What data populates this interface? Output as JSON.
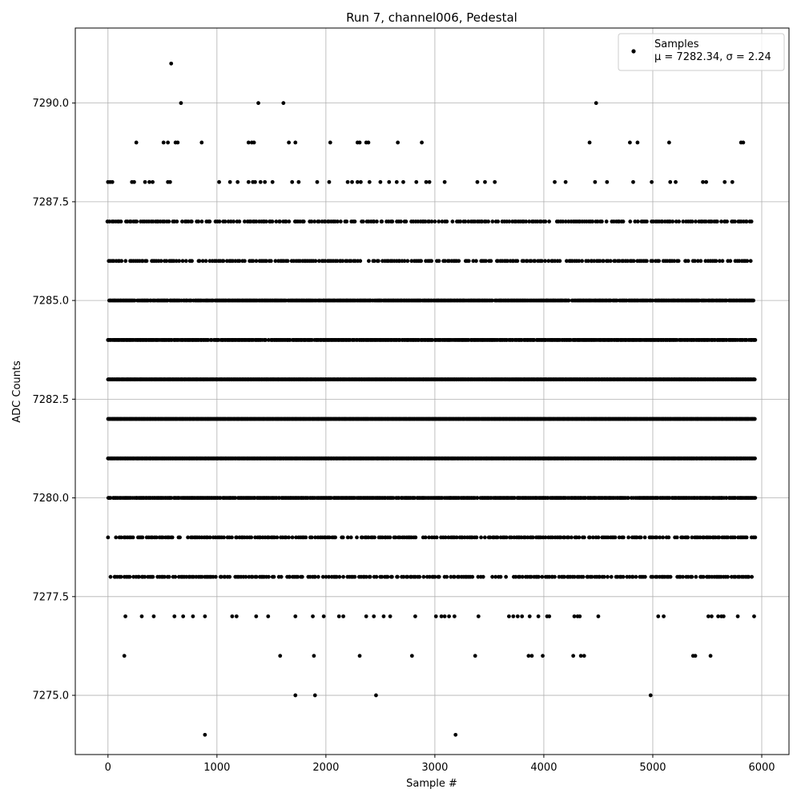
{
  "chart_data": {
    "type": "scatter",
    "title": "Run 7, channel006, Pedestal",
    "xlabel": "Sample #",
    "ylabel": "ADC Counts",
    "xlim": [
      -300,
      6250
    ],
    "ylim": [
      7273.5,
      7291.9
    ],
    "xticks": [
      0,
      1000,
      2000,
      3000,
      4000,
      5000,
      6000
    ],
    "yticks": [
      7275.0,
      7277.5,
      7280.0,
      7282.5,
      7285.0,
      7287.5,
      7290.0
    ],
    "xtick_labels": [
      "0",
      "1000",
      "2000",
      "3000",
      "4000",
      "5000",
      "6000"
    ],
    "ytick_labels": [
      "7275.0",
      "7277.5",
      "7280.0",
      "7282.5",
      "7285.0",
      "7287.5",
      "7290.0"
    ],
    "grid": true,
    "legend_position": "top-right",
    "series": [
      {
        "name": "Samples",
        "legend_stats": "μ = 7282.34, σ = 2.24",
        "color": "#000000",
        "n_points": 5940,
        "levels": [
          {
            "y": 7281,
            "x_range": [
              0,
              5940
            ],
            "density": "continuous"
          },
          {
            "y": 7282,
            "x_range": [
              0,
              5940
            ],
            "density": "continuous"
          },
          {
            "y": 7283,
            "x_range": [
              0,
              5940
            ],
            "density": "continuous"
          },
          {
            "y": 7284,
            "x_range": [
              0,
              5940
            ],
            "density": "dense"
          },
          {
            "y": 7285,
            "x_range": [
              0,
              5940
            ],
            "density": "dense"
          },
          {
            "y": 7280,
            "x_range": [
              0,
              5940
            ],
            "density": "dense"
          },
          {
            "y": 7279,
            "x_range": [
              0,
              5940
            ],
            "density": "medium"
          },
          {
            "y": 7286,
            "x_range": [
              0,
              5920
            ],
            "density": "medium"
          },
          {
            "y": 7287,
            "x_range": [
              0,
              5920
            ],
            "density": "medium"
          },
          {
            "y": 7278,
            "x_range": [
              0,
              5940
            ],
            "density": "medium"
          }
        ],
        "sparse_points": [
          {
            "x": 0,
            "y": 7288
          },
          {
            "x": 20,
            "y": 7288
          },
          {
            "x": 40,
            "y": 7288
          },
          {
            "x": 220,
            "y": 7288
          },
          {
            "x": 240,
            "y": 7288
          },
          {
            "x": 340,
            "y": 7288
          },
          {
            "x": 380,
            "y": 7288
          },
          {
            "x": 410,
            "y": 7288
          },
          {
            "x": 550,
            "y": 7288
          },
          {
            "x": 570,
            "y": 7288
          },
          {
            "x": 1020,
            "y": 7288
          },
          {
            "x": 1120,
            "y": 7288
          },
          {
            "x": 1190,
            "y": 7288
          },
          {
            "x": 1290,
            "y": 7288
          },
          {
            "x": 1330,
            "y": 7288
          },
          {
            "x": 1350,
            "y": 7288
          },
          {
            "x": 1400,
            "y": 7288
          },
          {
            "x": 1440,
            "y": 7288
          },
          {
            "x": 1510,
            "y": 7288
          },
          {
            "x": 1690,
            "y": 7288
          },
          {
            "x": 1750,
            "y": 7288
          },
          {
            "x": 1920,
            "y": 7288
          },
          {
            "x": 2030,
            "y": 7288
          },
          {
            "x": 2200,
            "y": 7288
          },
          {
            "x": 2240,
            "y": 7288
          },
          {
            "x": 2290,
            "y": 7288
          },
          {
            "x": 2320,
            "y": 7288
          },
          {
            "x": 2400,
            "y": 7288
          },
          {
            "x": 2500,
            "y": 7288
          },
          {
            "x": 2580,
            "y": 7288
          },
          {
            "x": 2650,
            "y": 7288
          },
          {
            "x": 2710,
            "y": 7288
          },
          {
            "x": 2830,
            "y": 7288
          },
          {
            "x": 2920,
            "y": 7288
          },
          {
            "x": 2950,
            "y": 7288
          },
          {
            "x": 3090,
            "y": 7288
          },
          {
            "x": 3390,
            "y": 7288
          },
          {
            "x": 3460,
            "y": 7288
          },
          {
            "x": 3550,
            "y": 7288
          },
          {
            "x": 4100,
            "y": 7288
          },
          {
            "x": 4200,
            "y": 7288
          },
          {
            "x": 4470,
            "y": 7288
          },
          {
            "x": 4580,
            "y": 7288
          },
          {
            "x": 4820,
            "y": 7288
          },
          {
            "x": 4990,
            "y": 7288
          },
          {
            "x": 5160,
            "y": 7288
          },
          {
            "x": 5210,
            "y": 7288
          },
          {
            "x": 5460,
            "y": 7288
          },
          {
            "x": 5490,
            "y": 7288
          },
          {
            "x": 5660,
            "y": 7288
          },
          {
            "x": 5730,
            "y": 7288
          },
          {
            "x": 260,
            "y": 7289
          },
          {
            "x": 510,
            "y": 7289
          },
          {
            "x": 550,
            "y": 7289
          },
          {
            "x": 620,
            "y": 7289
          },
          {
            "x": 640,
            "y": 7289
          },
          {
            "x": 860,
            "y": 7289
          },
          {
            "x": 1290,
            "y": 7289
          },
          {
            "x": 1320,
            "y": 7289
          },
          {
            "x": 1340,
            "y": 7289
          },
          {
            "x": 1660,
            "y": 7289
          },
          {
            "x": 1720,
            "y": 7289
          },
          {
            "x": 2040,
            "y": 7289
          },
          {
            "x": 2290,
            "y": 7289
          },
          {
            "x": 2310,
            "y": 7289
          },
          {
            "x": 2370,
            "y": 7289
          },
          {
            "x": 2390,
            "y": 7289
          },
          {
            "x": 2660,
            "y": 7289
          },
          {
            "x": 2880,
            "y": 7289
          },
          {
            "x": 4420,
            "y": 7289
          },
          {
            "x": 4790,
            "y": 7289
          },
          {
            "x": 4860,
            "y": 7289
          },
          {
            "x": 5150,
            "y": 7289
          },
          {
            "x": 5810,
            "y": 7289
          },
          {
            "x": 5830,
            "y": 7289
          },
          {
            "x": 670,
            "y": 7290
          },
          {
            "x": 1380,
            "y": 7290
          },
          {
            "x": 1610,
            "y": 7290
          },
          {
            "x": 4480,
            "y": 7290
          },
          {
            "x": 580,
            "y": 7291
          },
          {
            "x": 160,
            "y": 7277
          },
          {
            "x": 310,
            "y": 7277
          },
          {
            "x": 420,
            "y": 7277
          },
          {
            "x": 610,
            "y": 7277
          },
          {
            "x": 690,
            "y": 7277
          },
          {
            "x": 780,
            "y": 7277
          },
          {
            "x": 890,
            "y": 7277
          },
          {
            "x": 1140,
            "y": 7277
          },
          {
            "x": 1180,
            "y": 7277
          },
          {
            "x": 1360,
            "y": 7277
          },
          {
            "x": 1470,
            "y": 7277
          },
          {
            "x": 1720,
            "y": 7277
          },
          {
            "x": 1880,
            "y": 7277
          },
          {
            "x": 1980,
            "y": 7277
          },
          {
            "x": 2120,
            "y": 7277
          },
          {
            "x": 2160,
            "y": 7277
          },
          {
            "x": 2370,
            "y": 7277
          },
          {
            "x": 2440,
            "y": 7277
          },
          {
            "x": 2530,
            "y": 7277
          },
          {
            "x": 2590,
            "y": 7277
          },
          {
            "x": 2820,
            "y": 7277
          },
          {
            "x": 3010,
            "y": 7277
          },
          {
            "x": 3060,
            "y": 7277
          },
          {
            "x": 3090,
            "y": 7277
          },
          {
            "x": 3130,
            "y": 7277
          },
          {
            "x": 3180,
            "y": 7277
          },
          {
            "x": 3400,
            "y": 7277
          },
          {
            "x": 3680,
            "y": 7277
          },
          {
            "x": 3720,
            "y": 7277
          },
          {
            "x": 3760,
            "y": 7277
          },
          {
            "x": 3800,
            "y": 7277
          },
          {
            "x": 3870,
            "y": 7277
          },
          {
            "x": 3950,
            "y": 7277
          },
          {
            "x": 4030,
            "y": 7277
          },
          {
            "x": 4050,
            "y": 7277
          },
          {
            "x": 4280,
            "y": 7277
          },
          {
            "x": 4310,
            "y": 7277
          },
          {
            "x": 4330,
            "y": 7277
          },
          {
            "x": 4500,
            "y": 7277
          },
          {
            "x": 5050,
            "y": 7277
          },
          {
            "x": 5100,
            "y": 7277
          },
          {
            "x": 5510,
            "y": 7277
          },
          {
            "x": 5540,
            "y": 7277
          },
          {
            "x": 5600,
            "y": 7277
          },
          {
            "x": 5630,
            "y": 7277
          },
          {
            "x": 5650,
            "y": 7277
          },
          {
            "x": 5780,
            "y": 7277
          },
          {
            "x": 5930,
            "y": 7277
          },
          {
            "x": 150,
            "y": 7276
          },
          {
            "x": 1580,
            "y": 7276
          },
          {
            "x": 1890,
            "y": 7276
          },
          {
            "x": 2310,
            "y": 7276
          },
          {
            "x": 2790,
            "y": 7276
          },
          {
            "x": 3370,
            "y": 7276
          },
          {
            "x": 3860,
            "y": 7276
          },
          {
            "x": 3890,
            "y": 7276
          },
          {
            "x": 3990,
            "y": 7276
          },
          {
            "x": 4270,
            "y": 7276
          },
          {
            "x": 4340,
            "y": 7276
          },
          {
            "x": 4370,
            "y": 7276
          },
          {
            "x": 5370,
            "y": 7276
          },
          {
            "x": 5390,
            "y": 7276
          },
          {
            "x": 5530,
            "y": 7276
          },
          {
            "x": 1720,
            "y": 7275
          },
          {
            "x": 1900,
            "y": 7275
          },
          {
            "x": 2460,
            "y": 7275
          },
          {
            "x": 4980,
            "y": 7275
          },
          {
            "x": 890,
            "y": 7274
          },
          {
            "x": 3190,
            "y": 7274
          }
        ]
      }
    ]
  }
}
